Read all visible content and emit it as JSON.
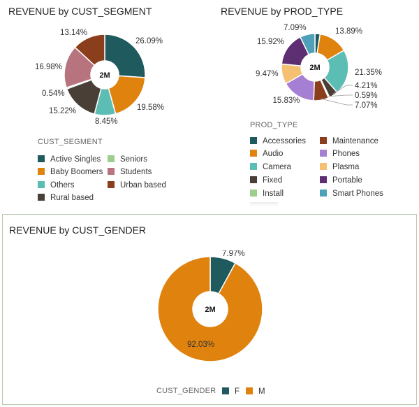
{
  "chart_data": [
    {
      "type": "pie",
      "title": "REVENUE by CUST_SEGMENT",
      "center_label": "2M",
      "legend_title": "CUST_SEGMENT",
      "categories": [
        "Active Singles",
        "Baby Boomers",
        "Others",
        "Rural based",
        "Seniors",
        "Students",
        "Urban based"
      ],
      "values": [
        26.09,
        19.58,
        8.45,
        15.22,
        0.54,
        16.98,
        13.14
      ],
      "labels": [
        "26.09%",
        "19.58%",
        "8.45%",
        "15.22%",
        "0.54%",
        "16.98%",
        "13.14%"
      ],
      "colors": [
        "#1e5a5e",
        "#e0820e",
        "#5cbdb5",
        "#4a3f36",
        "#9dce8c",
        "#b8747e",
        "#8b3e1c"
      ]
    },
    {
      "type": "pie",
      "title": "REVENUE by PROD_TYPE",
      "center_label": "2M",
      "legend_title": "PROD_TYPE",
      "categories": [
        "Accessories",
        "Audio",
        "Camera",
        "Fixed",
        "Install",
        "Maintenance",
        "Phones",
        "Plasma",
        "Portable",
        "Smart Phones"
      ],
      "values": [
        2.43,
        13.89,
        21.35,
        4.21,
        0.59,
        7.07,
        15.83,
        9.47,
        15.92,
        7.09
      ],
      "labels": [
        "",
        "13.89%",
        "21.35%",
        "4.21%",
        "0.59%",
        "7.07%",
        "15.83%",
        "9.47%",
        "15.92%",
        "7.09%"
      ],
      "colors": [
        "#1e5a5e",
        "#e0820e",
        "#5cbdb5",
        "#4a3f36",
        "#9dce8c",
        "#8b3e1c",
        "#a57fd3",
        "#f6c073",
        "#5e2e72",
        "#4ea1b8"
      ]
    },
    {
      "type": "pie",
      "title": "REVENUE by CUST_GENDER",
      "center_label": "2M",
      "legend_title": "CUST_GENDER",
      "categories": [
        "F",
        "M"
      ],
      "values": [
        7.97,
        92.03
      ],
      "labels": [
        "7.97%",
        "92.03%"
      ],
      "colors": [
        "#1e5a5e",
        "#e0820e"
      ]
    }
  ]
}
